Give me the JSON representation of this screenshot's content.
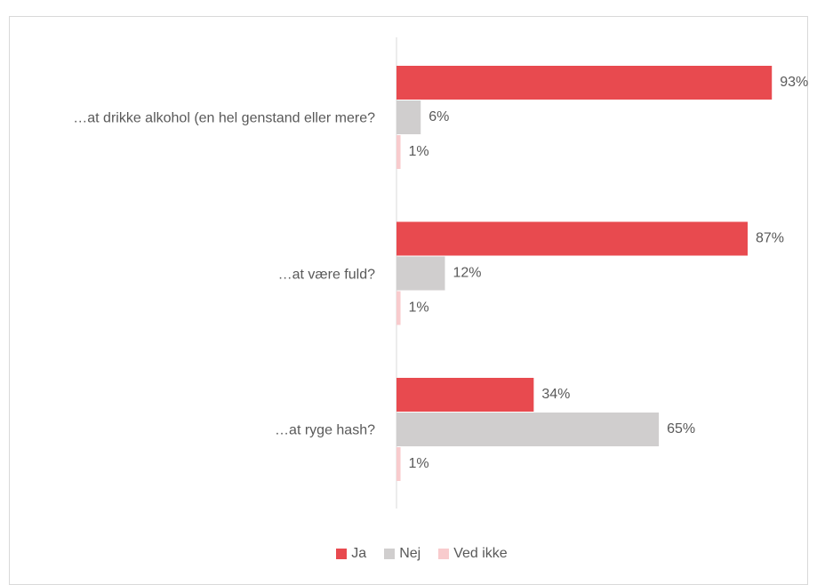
{
  "chart_data": {
    "type": "bar",
    "orientation": "horizontal",
    "categories": [
      "…at drikke alkohol (en hel genstand eller mere?",
      "…at være fuld?",
      "…at ryge hash?"
    ],
    "series": [
      {
        "name": "Ja",
        "color": "#e84a4f",
        "values": [
          93,
          87,
          34
        ],
        "value_labels": [
          "93%",
          "87%",
          "34%"
        ]
      },
      {
        "name": "Nej",
        "color": "#d0cece",
        "values": [
          6,
          12,
          65
        ],
        "value_labels": [
          "6%",
          "12%",
          "65%"
        ]
      },
      {
        "name": "Ved ikke",
        "color": "#f8cbcd",
        "values": [
          1,
          1,
          1
        ],
        "value_labels": [
          "1%",
          "1%",
          "1%"
        ]
      }
    ],
    "xlim": [
      0,
      100
    ],
    "legend": "bottom"
  }
}
